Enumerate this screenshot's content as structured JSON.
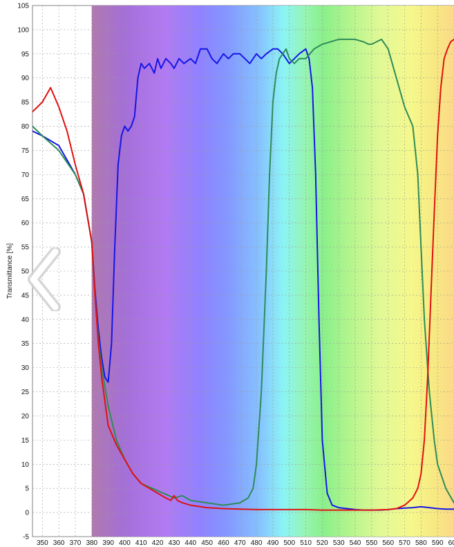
{
  "chart_data": {
    "type": "line",
    "xlabel": "",
    "ylabel": "Transmittance [%]",
    "xlim": [
      344,
      600
    ],
    "ylim": [
      -5,
      105
    ],
    "x_ticks": [
      350,
      360,
      370,
      380,
      390,
      400,
      410,
      420,
      430,
      440,
      450,
      460,
      470,
      480,
      490,
      500,
      510,
      520,
      530,
      540,
      550,
      560,
      570,
      580,
      590,
      600
    ],
    "y_ticks": [
      -5,
      0,
      5,
      10,
      15,
      20,
      25,
      30,
      35,
      40,
      45,
      50,
      55,
      60,
      65,
      70,
      75,
      80,
      85,
      90,
      95,
      100,
      105
    ],
    "grid": true,
    "background": "visible spectrum color gradient starting at 380 nm",
    "series": [
      {
        "color": "#1515e6",
        "x": [
          344,
          350,
          360,
          370,
          375,
          380,
          382,
          384,
          386,
          388,
          390,
          392,
          394,
          396,
          398,
          400,
          402,
          404,
          406,
          408,
          410,
          412,
          415,
          418,
          420,
          422,
          425,
          428,
          430,
          433,
          436,
          440,
          443,
          446,
          450,
          453,
          456,
          460,
          463,
          466,
          470,
          473,
          476,
          480,
          483,
          486,
          490,
          493,
          496,
          500,
          503,
          506,
          510,
          512,
          514,
          516,
          518,
          520,
          523,
          526,
          530,
          535,
          540,
          545,
          550,
          555,
          560,
          565,
          570,
          575,
          580,
          585,
          590,
          595,
          600
        ],
        "y": [
          79,
          78,
          76,
          70,
          66,
          56,
          46,
          38,
          32,
          28,
          27,
          35,
          55,
          72,
          78,
          80,
          79,
          80,
          82,
          90,
          93,
          92,
          93,
          91,
          94,
          92,
          94,
          93,
          92,
          94,
          93,
          94,
          93,
          96,
          96,
          94,
          93,
          95,
          94,
          95,
          95,
          94,
          93,
          95,
          94,
          95,
          96,
          96,
          95,
          93,
          94,
          95,
          96,
          94,
          88,
          70,
          40,
          15,
          4,
          1.5,
          1,
          0.8,
          0.6,
          0.5,
          0.5,
          0.5,
          0.6,
          0.8,
          0.9,
          1.0,
          1.2,
          1.0,
          0.8,
          0.7,
          0.7
        ]
      },
      {
        "color": "#2e8b57",
        "x": [
          344,
          350,
          360,
          370,
          375,
          380,
          382,
          384,
          386,
          388,
          390,
          395,
          400,
          405,
          410,
          420,
          430,
          435,
          440,
          450,
          460,
          470,
          475,
          478,
          480,
          483,
          486,
          488,
          490,
          492,
          494,
          496,
          498,
          500,
          503,
          506,
          510,
          515,
          520,
          525,
          530,
          535,
          540,
          545,
          548,
          550,
          553,
          556,
          560,
          565,
          570,
          575,
          578,
          580,
          582,
          585,
          588,
          590,
          595,
          600
        ],
        "y": [
          80,
          78,
          75,
          70,
          66,
          56,
          45,
          36,
          30,
          26,
          22,
          15,
          11,
          8,
          6,
          4.5,
          3,
          3.5,
          2.5,
          2,
          1.5,
          2,
          3,
          5,
          10,
          25,
          50,
          70,
          85,
          91,
          94,
          95,
          96,
          94,
          93,
          94,
          94,
          96,
          97,
          97.5,
          98,
          98,
          98,
          97.5,
          97,
          97,
          97.5,
          98,
          96,
          90,
          84,
          80,
          70,
          55,
          40,
          25,
          15,
          10,
          5,
          2
        ]
      },
      {
        "color": "#e01010",
        "x": [
          344,
          350,
          355,
          360,
          365,
          370,
          375,
          380,
          382,
          384,
          386,
          388,
          390,
          395,
          400,
          405,
          410,
          420,
          425,
          428,
          430,
          432,
          435,
          440,
          450,
          460,
          470,
          480,
          490,
          500,
          510,
          520,
          530,
          540,
          550,
          560,
          565,
          570,
          575,
          578,
          580,
          582,
          584,
          586,
          588,
          590,
          592,
          594,
          596,
          598,
          600
        ],
        "y": [
          83,
          85,
          88,
          84,
          79,
          72,
          66,
          56,
          45,
          35,
          28,
          23,
          18,
          14,
          11,
          8,
          6,
          4,
          3,
          2.5,
          3.5,
          2.5,
          2,
          1.5,
          1,
          0.8,
          0.7,
          0.6,
          0.6,
          0.6,
          0.6,
          0.5,
          0.5,
          0.5,
          0.5,
          0.6,
          0.8,
          1.5,
          3,
          5,
          8,
          15,
          28,
          45,
          62,
          78,
          88,
          94,
          96,
          97.5,
          98
        ]
      }
    ]
  }
}
